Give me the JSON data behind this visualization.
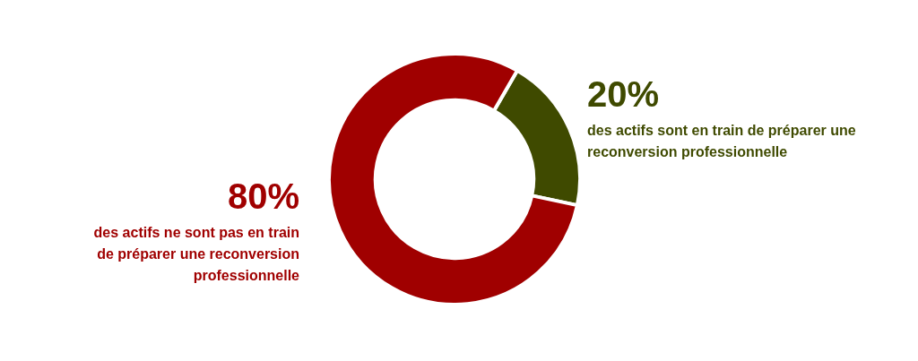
{
  "chart_data": {
    "type": "donut",
    "categories": [
      "des actifs sont en train de préparer une reconversion professionnelle",
      "des actifs ne sont pas en train de préparer une reconversion professionnelle"
    ],
    "values": [
      20,
      80
    ],
    "value_labels": [
      "20%",
      "80%"
    ],
    "colors": [
      "#3f4a00",
      "#a00000"
    ],
    "legend": false
  }
}
